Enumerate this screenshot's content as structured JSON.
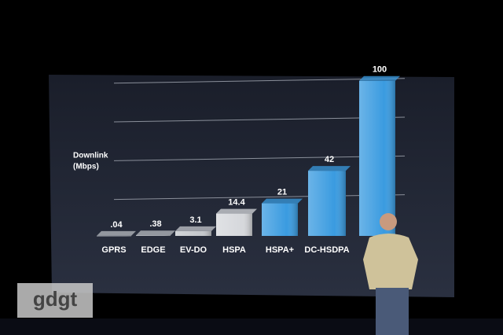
{
  "chart_data": {
    "type": "bar",
    "axis_label": [
      "Downlink",
      "(Mbps)"
    ],
    "categories": [
      "GPRS",
      "EDGE",
      "EV-DO",
      "HSPA",
      "HSPA+",
      "DC-HSDPA",
      null
    ],
    "values": [
      0.04,
      0.38,
      3.1,
      14.4,
      21,
      42,
      100
    ],
    "value_labels": [
      ".04",
      ".38",
      "3.1",
      "14.4",
      "21",
      "42",
      "100"
    ],
    "colors": [
      "#b8bcc2",
      "#b8bcc2",
      "#c4c7cc",
      "#d6d8dc",
      "#3a9be0",
      "#3a9be0",
      "#3a9be0"
    ],
    "ylim": [
      0,
      110
    ],
    "yticks": [
      25,
      50,
      75,
      100
    ],
    "grid": true,
    "watermark": "gdgt"
  }
}
